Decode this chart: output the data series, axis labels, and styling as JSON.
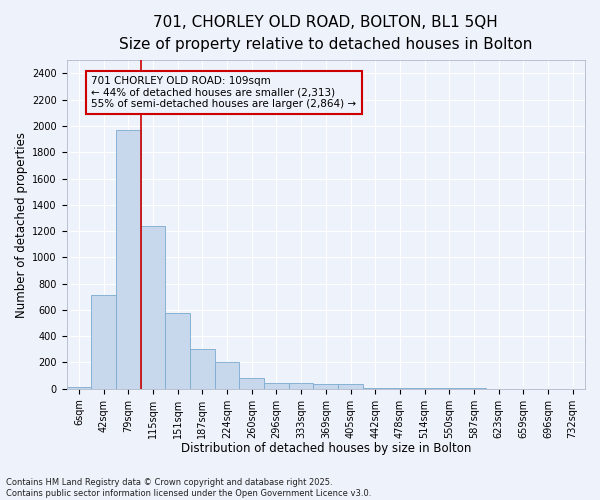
{
  "title_line1": "701, CHORLEY OLD ROAD, BOLTON, BL1 5QH",
  "title_line2": "Size of property relative to detached houses in Bolton",
  "xlabel": "Distribution of detached houses by size in Bolton",
  "ylabel": "Number of detached properties",
  "categories": [
    "6sqm",
    "42sqm",
    "79sqm",
    "115sqm",
    "151sqm",
    "187sqm",
    "224sqm",
    "260sqm",
    "296sqm",
    "333sqm",
    "369sqm",
    "405sqm",
    "442sqm",
    "478sqm",
    "514sqm",
    "550sqm",
    "587sqm",
    "623sqm",
    "659sqm",
    "696sqm",
    "732sqm"
  ],
  "values": [
    15,
    715,
    1970,
    1240,
    580,
    300,
    200,
    80,
    40,
    40,
    35,
    35,
    5,
    5,
    3,
    3,
    2,
    1,
    1,
    1,
    1
  ],
  "bar_color": "#c8d8ec",
  "bar_edge_color": "#7aaacf",
  "vline_color": "#cc0000",
  "vline_index": 3,
  "annotation_text": "701 CHORLEY OLD ROAD: 109sqm\n← 44% of detached houses are smaller (2,313)\n55% of semi-detached houses are larger (2,864) →",
  "annotation_box_edgecolor": "#cc0000",
  "ylim": [
    0,
    2500
  ],
  "yticks": [
    0,
    200,
    400,
    600,
    800,
    1000,
    1200,
    1400,
    1600,
    1800,
    2000,
    2200,
    2400
  ],
  "bg_color": "#eef2fa",
  "grid_color": "#ffffff",
  "footer_text": "Contains HM Land Registry data © Crown copyright and database right 2025.\nContains public sector information licensed under the Open Government Licence v3.0.",
  "title_fontsize": 11,
  "subtitle_fontsize": 9.5,
  "axis_label_fontsize": 8.5,
  "tick_fontsize": 7,
  "annotation_fontsize": 7.5,
  "footer_fontsize": 6
}
